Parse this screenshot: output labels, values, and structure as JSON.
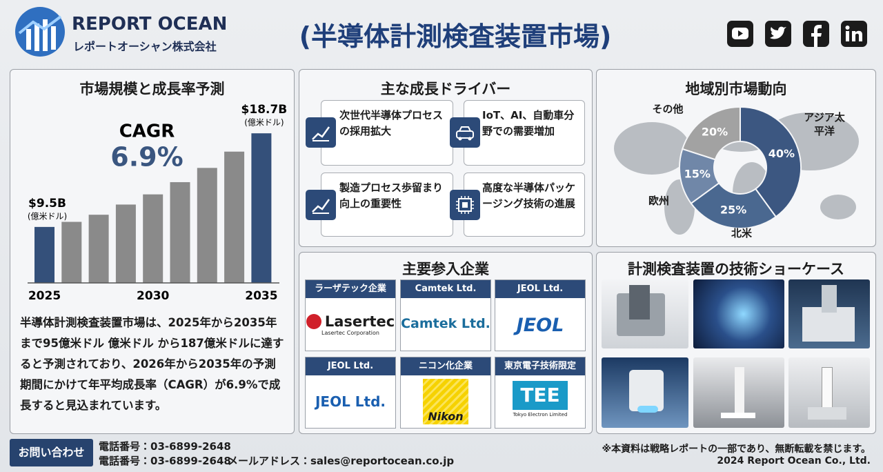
{
  "header": {
    "brand": "REPORT OCEAN",
    "brand_sub": "レポートオーシャン株式会社",
    "title": "(半導体計測検査装置市場)"
  },
  "chart_data": [
    {
      "type": "bar",
      "title": "市場規模と成長率予測",
      "categories": [
        "2025",
        null,
        null,
        null,
        "2030",
        null,
        null,
        null,
        "2035"
      ],
      "values": [
        9.5,
        10.0,
        10.7,
        11.7,
        12.7,
        13.9,
        15.3,
        16.9,
        18.7
      ],
      "value_labels": [
        "$9.5B",
        null,
        null,
        null,
        null,
        null,
        null,
        null,
        "$18.7B"
      ],
      "unit": "(億米ドル)",
      "colors": [
        "#34507a",
        "#8a8a8a",
        "#8a8a8a",
        "#8a8a8a",
        "#8a8a8a",
        "#8a8a8a",
        "#8a8a8a",
        "#8a8a8a",
        "#34507a"
      ],
      "ylim": [
        4,
        20
      ],
      "annotations": [
        "CAGR",
        "6.9%"
      ]
    },
    {
      "type": "donut",
      "title": "地域別市場動向",
      "categories": [
        "アジア太平洋",
        "北米",
        "欧州",
        "その他"
      ],
      "values": [
        40,
        25,
        15,
        20
      ],
      "value_labels": [
        "40%",
        "25%",
        "15%",
        "20%"
      ],
      "colors": [
        "#3c5781",
        "#4a6890",
        "#7087a8",
        "#a2a2a2"
      ]
    }
  ],
  "summary": "半導体計測検査装置市場は、2025年から2035年まで95億米ドル  億米ドル から187億米ドルに達すると予測されており、2026年から2035年の予測期間にかけて年平均成長率（CAGR）が6.9%で成長すると見込まれています。",
  "drivers": {
    "title": "主な成長ドライバー",
    "items": [
      "次世代半導体プロセスの採用拡大",
      "IoT、AI、自動車分野での需要増加",
      "製造プロセス歩留まり向上の重要性",
      "高度な半導体パッケージング技術の進展"
    ]
  },
  "companies": {
    "title": "主要参入企業",
    "items": [
      {
        "name": "ラーザテック企業",
        "logo": [
          "Lasertec",
          "Lasertec Corporation"
        ]
      },
      {
        "name": "Camtek Ltd.",
        "logo": [
          "Camtek Ltd."
        ]
      },
      {
        "name": "JEOL Ltd.",
        "logo": [
          "JEOL"
        ]
      },
      {
        "name": "JEOL Ltd.",
        "logo": [
          "JEOL Ltd."
        ]
      },
      {
        "name": "ニコン化企業",
        "logo": [
          "Nikon"
        ]
      },
      {
        "name": "東京電子技術限定",
        "logo": [
          "TEE",
          "Tokyo Electron Limited"
        ]
      }
    ]
  },
  "showcase": {
    "title": "計測検査装置の技術ショーケース"
  },
  "footer": {
    "contact": "お問い合わせ",
    "phone1": "電話番号：03-6899-2648",
    "phone2": "電話番号：03-6899-2648",
    "email": "メールアドレス：sales@reportocean.co.jp",
    "notice": "※本資料は戦略レポートの一部であり、無断転載を禁じます。",
    "copyright": "2024 Report Ocean Co., Ltd."
  }
}
